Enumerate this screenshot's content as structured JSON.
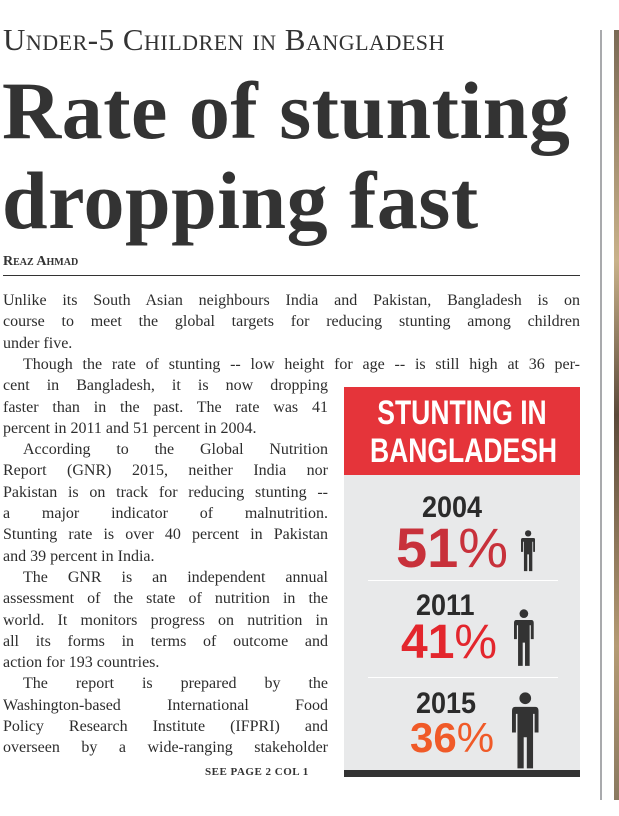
{
  "header": {
    "kicker": "Under-5 Children in Bangladesh",
    "title_line1": "Rate of stunting",
    "title_line2": "dropping fast",
    "byline": "Reaz Ahmad"
  },
  "article": {
    "full_lines": [
      "Unlike its South Asian neighbours India and Pakistan, Bangladesh is on",
      "course to meet the global targets for reducing stunting among children",
      "under five.",
      "Though the rate of stunting -- low height for age -- is still high at 36 per-"
    ],
    "column_lines": [
      "cent in Bangladesh, it is now dropping",
      "faster than in the past. The rate was 41",
      "percent in 2011 and 51 percent in 2004.",
      "According to the Global Nutrition",
      "Report (GNR) 2015, neither India nor",
      "Pakistan is on track for reducing stunting --",
      "a major indicator of malnutrition.",
      "Stunting rate is over 40 percent in Pakistan",
      "and 39 percent in India.",
      "The GNR is an independent annual",
      "assessment of the state of nutrition in the",
      "world. It monitors progress on nutrition in",
      "all its forms in terms of outcome and",
      "action for 193 countries.",
      "The report is prepared by the",
      "Washington-based International Food",
      "Policy Research Institute (IFPRI) and",
      "overseen by a wide-ranging stakeholder"
    ],
    "continued": "SEE PAGE 2 COL 1"
  },
  "infobox": {
    "title_line1": "STUNTING IN",
    "title_line2": "BANGLADESH",
    "header_color": "#e5343a",
    "entries": [
      {
        "year": "2004",
        "value": "51",
        "unit": "%",
        "color": "#c8313b",
        "icon": "person-icon"
      },
      {
        "year": "2011",
        "value": "41",
        "unit": "%",
        "color": "#e3262d",
        "icon": "person-icon"
      },
      {
        "year": "2015",
        "value": "36",
        "unit": "%",
        "color": "#f05a28",
        "icon": "person-icon"
      }
    ]
  }
}
